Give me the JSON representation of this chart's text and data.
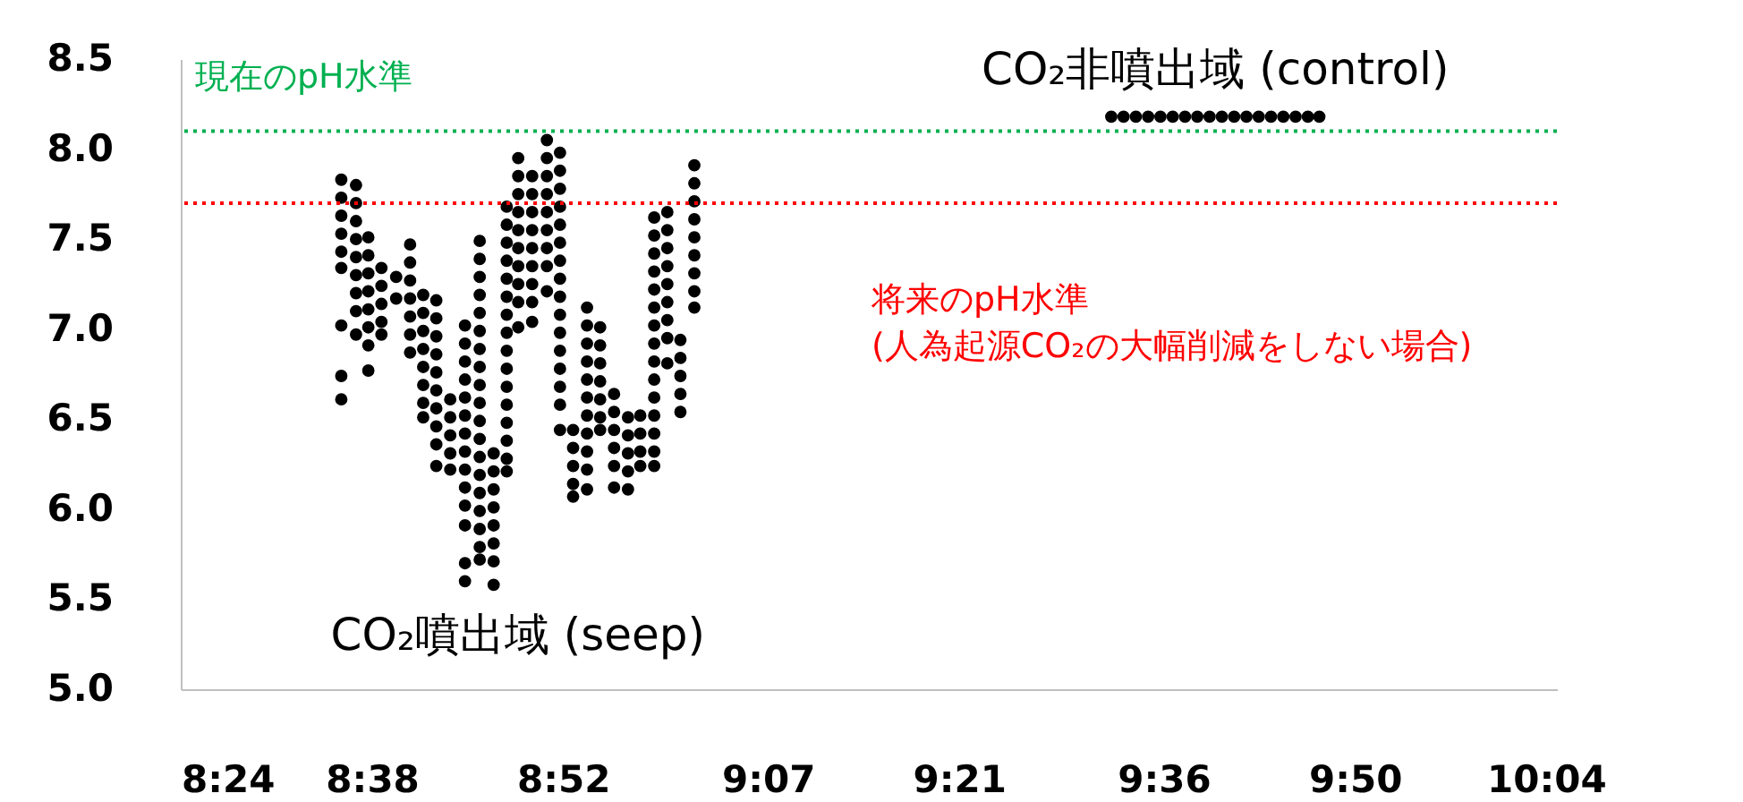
{
  "chart_data": {
    "type": "scatter",
    "xlim": [
      8.4,
      10.08
    ],
    "xticks": [
      {
        "value": 8.4,
        "label": "8:24"
      },
      {
        "value": 8.6333,
        "label": "8:38"
      },
      {
        "value": 8.8667,
        "label": "8:52"
      },
      {
        "value": 9.1167,
        "label": "9:07"
      },
      {
        "value": 9.35,
        "label": "9:21"
      },
      {
        "value": 9.6,
        "label": "9:36"
      },
      {
        "value": 9.8333,
        "label": "9:50"
      },
      {
        "value": 10.0667,
        "label": "10:04"
      }
    ],
    "ylim": [
      5,
      8.5
    ],
    "yticks": [
      {
        "value": 5,
        "label": "5.0"
      },
      {
        "value": 5.5,
        "label": "5.5"
      },
      {
        "value": 6,
        "label": "6.0"
      },
      {
        "value": 6.5,
        "label": "6.5"
      },
      {
        "value": 7,
        "label": "7.0"
      },
      {
        "value": 7.5,
        "label": "7.5"
      },
      {
        "value": 8,
        "label": "8.0"
      },
      {
        "value": 8.5,
        "label": "8.5"
      }
    ],
    "grid": false,
    "marker": "circle",
    "ref_lines": [
      {
        "axis": "y",
        "value": 8.1,
        "label": "現在のpH水準",
        "color": "#00b050",
        "line_style": "dotted"
      },
      {
        "axis": "y",
        "value": 7.7,
        "label": "将来のpH水準\n(人為起源CO₂の大幅削減をしない場合)",
        "color": "#ff0000",
        "line_style": "dotted"
      }
    ],
    "series": [
      {
        "name": "CO₂噴出域 (seep)",
        "color": "#000000",
        "x": [
          8.596,
          8.596,
          8.596,
          8.596,
          8.596,
          8.596,
          8.596,
          8.596,
          8.596,
          8.614,
          8.614,
          8.614,
          8.614,
          8.614,
          8.614,
          8.614,
          8.614,
          8.614,
          8.629,
          8.629,
          8.629,
          8.629,
          8.629,
          8.629,
          8.629,
          8.629,
          8.645,
          8.645,
          8.645,
          8.645,
          8.645,
          8.663,
          8.663,
          8.68,
          8.68,
          8.68,
          8.68,
          8.68,
          8.68,
          8.68,
          8.696,
          8.696,
          8.696,
          8.696,
          8.696,
          8.696,
          8.696,
          8.696,
          8.712,
          8.712,
          8.712,
          8.712,
          8.712,
          8.712,
          8.712,
          8.712,
          8.712,
          8.712,
          8.729,
          8.729,
          8.729,
          8.729,
          8.729,
          8.747,
          8.747,
          8.747,
          8.747,
          8.747,
          8.747,
          8.747,
          8.747,
          8.747,
          8.747,
          8.747,
          8.747,
          8.747,
          8.747,
          8.765,
          8.765,
          8.765,
          8.765,
          8.765,
          8.765,
          8.765,
          8.765,
          8.765,
          8.765,
          8.765,
          8.765,
          8.765,
          8.765,
          8.765,
          8.765,
          8.765,
          8.765,
          8.765,
          8.782,
          8.782,
          8.782,
          8.782,
          8.782,
          8.782,
          8.782,
          8.782,
          8.798,
          8.798,
          8.798,
          8.798,
          8.798,
          8.798,
          8.798,
          8.798,
          8.798,
          8.798,
          8.798,
          8.798,
          8.798,
          8.798,
          8.798,
          8.798,
          8.812,
          8.812,
          8.812,
          8.812,
          8.812,
          8.812,
          8.812,
          8.812,
          8.812,
          8.812,
          8.829,
          8.829,
          8.829,
          8.829,
          8.829,
          8.829,
          8.829,
          8.829,
          8.829,
          8.847,
          8.847,
          8.847,
          8.847,
          8.847,
          8.847,
          8.847,
          8.847,
          8.847,
          8.863,
          8.863,
          8.863,
          8.863,
          8.863,
          8.863,
          8.863,
          8.863,
          8.863,
          8.863,
          8.863,
          8.863,
          8.863,
          8.863,
          8.863,
          8.863,
          8.879,
          8.879,
          8.879,
          8.879,
          8.879,
          8.896,
          8.896,
          8.896,
          8.896,
          8.896,
          8.896,
          8.896,
          8.896,
          8.896,
          8.896,
          8.896,
          8.912,
          8.912,
          8.912,
          8.912,
          8.912,
          8.912,
          8.912,
          8.929,
          8.929,
          8.929,
          8.929,
          8.929,
          8.929,
          8.946,
          8.946,
          8.946,
          8.946,
          8.946,
          8.961,
          8.961,
          8.961,
          8.961,
          8.978,
          8.978,
          8.978,
          8.978,
          8.978,
          8.978,
          8.978,
          8.978,
          8.978,
          8.978,
          8.978,
          8.978,
          8.978,
          8.978,
          8.978,
          8.994,
          8.994,
          8.994,
          8.994,
          8.994,
          8.994,
          8.994,
          8.994,
          8.994,
          9.01,
          9.01,
          9.01,
          9.01,
          9.01,
          9.027,
          9.027,
          9.027,
          9.027,
          9.027,
          9.027,
          9.027,
          9.027,
          9.027
        ],
        "values": [
          7.83,
          7.73,
          7.63,
          7.53,
          7.43,
          7.34,
          7.02,
          6.74,
          6.61,
          7.8,
          7.7,
          7.6,
          7.5,
          7.4,
          7.3,
          7.2,
          7.1,
          6.97,
          7.51,
          7.41,
          7.31,
          7.21,
          7.11,
          7.01,
          6.91,
          6.77,
          7.34,
          7.24,
          7.14,
          7.04,
          6.97,
          7.29,
          7.17,
          7.47,
          7.37,
          7.27,
          7.17,
          7.07,
          6.97,
          6.87,
          7.19,
          7.09,
          6.99,
          6.89,
          6.79,
          6.69,
          6.59,
          6.51,
          7.16,
          7.06,
          6.96,
          6.86,
          6.76,
          6.66,
          6.56,
          6.46,
          6.36,
          6.24,
          6.61,
          6.51,
          6.41,
          6.31,
          6.22,
          7.02,
          6.92,
          6.82,
          6.72,
          6.62,
          6.52,
          6.42,
          6.32,
          6.22,
          6.12,
          6.02,
          5.91,
          5.7,
          5.6,
          7.49,
          7.39,
          7.29,
          7.19,
          7.09,
          6.99,
          6.89,
          6.79,
          6.69,
          6.59,
          6.49,
          6.39,
          6.29,
          6.19,
          6.09,
          5.99,
          5.89,
          5.79,
          5.72,
          6.31,
          6.21,
          6.11,
          6.01,
          5.91,
          5.81,
          5.71,
          5.58,
          7.68,
          7.58,
          7.48,
          7.38,
          7.28,
          7.18,
          7.08,
          6.98,
          6.88,
          6.78,
          6.68,
          6.58,
          6.48,
          6.38,
          6.28,
          6.21,
          7.95,
          7.85,
          7.75,
          7.65,
          7.55,
          7.45,
          7.35,
          7.25,
          7.15,
          7.01,
          7.85,
          7.75,
          7.65,
          7.55,
          7.45,
          7.35,
          7.25,
          7.15,
          7.04,
          8.05,
          7.95,
          7.85,
          7.75,
          7.65,
          7.55,
          7.45,
          7.35,
          7.21,
          7.98,
          7.88,
          7.78,
          7.68,
          7.58,
          7.48,
          7.38,
          7.28,
          7.18,
          7.08,
          6.98,
          6.88,
          6.78,
          6.68,
          6.58,
          6.44,
          6.44,
          6.34,
          6.24,
          6.14,
          6.07,
          7.12,
          7.02,
          6.92,
          6.82,
          6.72,
          6.62,
          6.52,
          6.42,
          6.32,
          6.22,
          6.11,
          7.01,
          6.91,
          6.81,
          6.71,
          6.61,
          6.51,
          6.44,
          6.64,
          6.54,
          6.44,
          6.34,
          6.24,
          6.12,
          6.51,
          6.41,
          6.31,
          6.21,
          6.11,
          6.52,
          6.42,
          6.32,
          6.24,
          7.62,
          7.52,
          7.42,
          7.32,
          7.22,
          7.12,
          7.02,
          6.92,
          6.82,
          6.72,
          6.62,
          6.52,
          6.42,
          6.32,
          6.24,
          7.65,
          7.55,
          7.45,
          7.35,
          7.25,
          7.15,
          7.05,
          6.95,
          6.81,
          6.94,
          6.84,
          6.74,
          6.64,
          6.54,
          7.91,
          7.81,
          7.71,
          7.61,
          7.51,
          7.41,
          7.31,
          7.21,
          7.12
        ]
      },
      {
        "name": "CO₂非噴出域 (control)",
        "color": "#000000",
        "x": [
          9.536,
          9.551,
          9.566,
          9.581,
          9.596,
          9.611,
          9.626,
          9.641,
          9.656,
          9.671,
          9.686,
          9.701,
          9.716,
          9.731,
          9.746,
          9.761,
          9.776,
          9.79
        ],
        "values": [
          8.18,
          8.18,
          8.18,
          8.18,
          8.18,
          8.18,
          8.18,
          8.18,
          8.18,
          8.18,
          8.18,
          8.18,
          8.18,
          8.18,
          8.18,
          8.18,
          8.18,
          8.18
        ]
      }
    ]
  }
}
